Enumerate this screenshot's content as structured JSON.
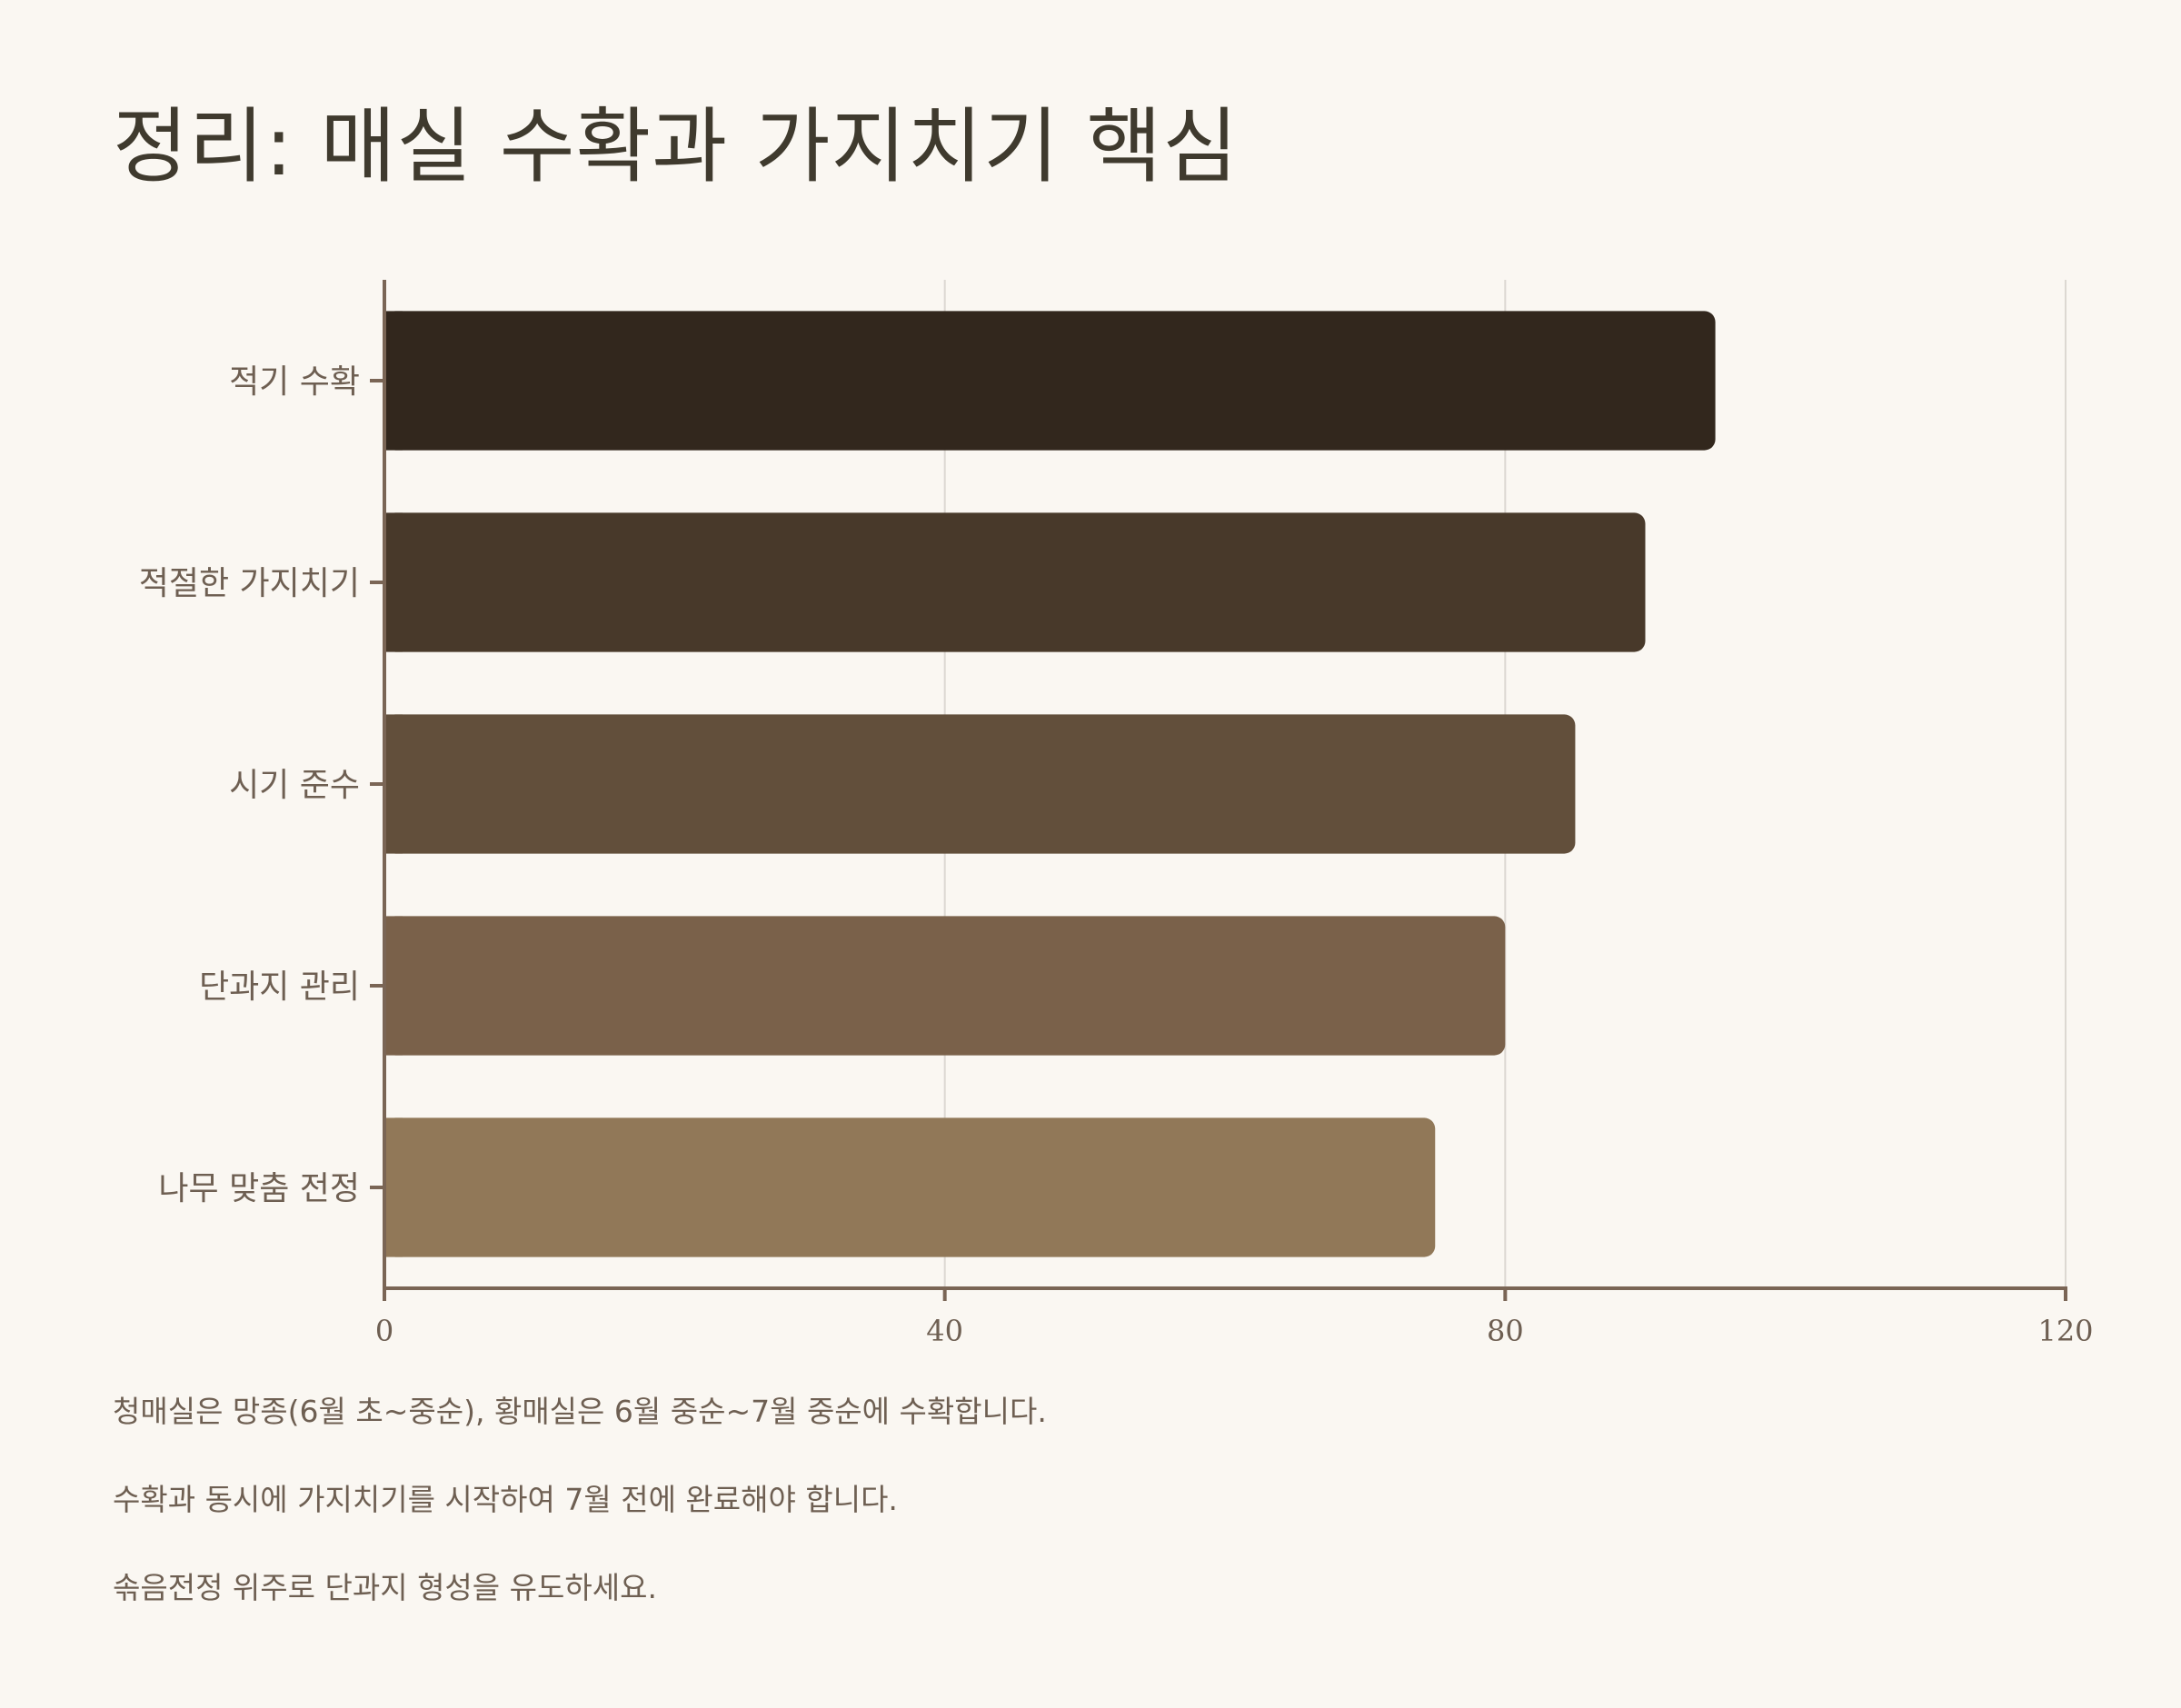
{
  "title": "정리: 매실 수확과 가지치기 핵심",
  "chart_data": {
    "type": "bar",
    "orientation": "horizontal",
    "categories": [
      "적기 수확",
      "적절한 가지치기",
      "시기 준수",
      "단과지 관리",
      "나무 맞춤 전정"
    ],
    "values": [
      95,
      90,
      85,
      80,
      75
    ],
    "xlim": [
      0,
      120
    ],
    "xticks": [
      0,
      40,
      80,
      120
    ],
    "grid": true,
    "legend": "none",
    "bar_colors": [
      "#32271d",
      "#48392a",
      "#624f3b",
      "#7a614a",
      "#917858"
    ],
    "axis_color": "#7a6555",
    "grid_color": "#dcd8d2"
  },
  "notes": [
    "청매실은 망종(6월 초~중순), 황매실은 6월 중순~7월 중순에 수확합니다.",
    "수확과 동시에 가지치기를 시작하여 7월 전에 완료해야 합니다.",
    "솎음전정 위주로 단과지 형성을 유도하세요."
  ]
}
